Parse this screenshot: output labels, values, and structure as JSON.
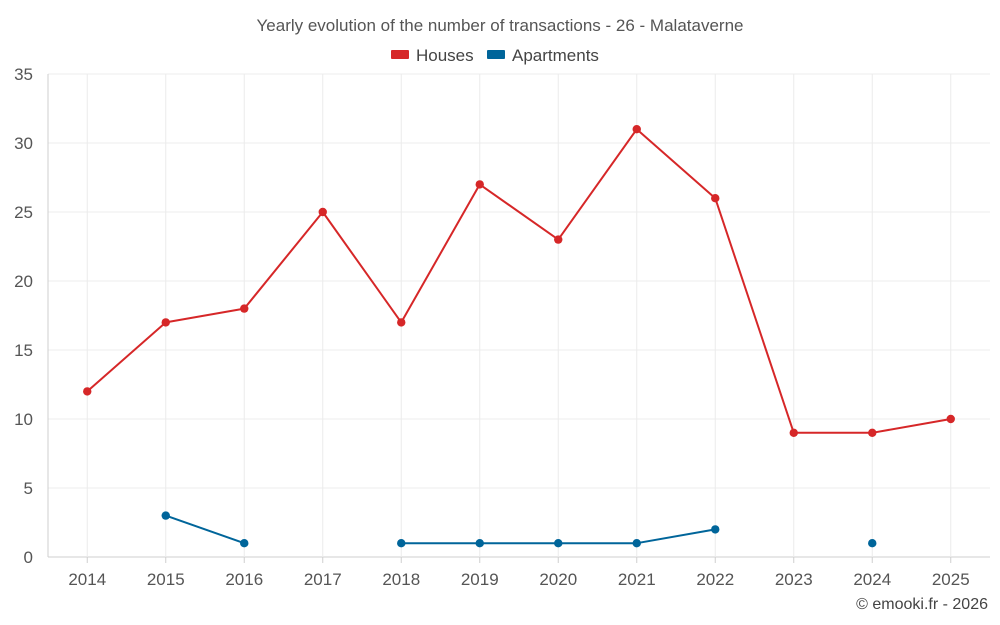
{
  "chart_data": {
    "type": "line",
    "title": "Yearly evolution of the number of transactions - 26 - Malataverne",
    "categories": [
      "2014",
      "2015",
      "2016",
      "2017",
      "2018",
      "2019",
      "2020",
      "2021",
      "2022",
      "2023",
      "2024",
      "2025"
    ],
    "series": [
      {
        "name": "Houses",
        "color": "#d62728",
        "values": [
          12,
          17,
          18,
          25,
          17,
          27,
          23,
          31,
          26,
          9,
          9,
          10
        ]
      },
      {
        "name": "Apartments",
        "color": "#00659a",
        "values": [
          null,
          3,
          1,
          null,
          1,
          1,
          1,
          1,
          2,
          null,
          1,
          null
        ]
      }
    ],
    "ylim": [
      0,
      35
    ],
    "yticks": [
      0,
      5,
      10,
      15,
      20,
      25,
      30,
      35
    ],
    "grid": true,
    "legend": "top-center",
    "xlabel": "",
    "ylabel": ""
  },
  "credit": "© emooki.fr - 2026"
}
